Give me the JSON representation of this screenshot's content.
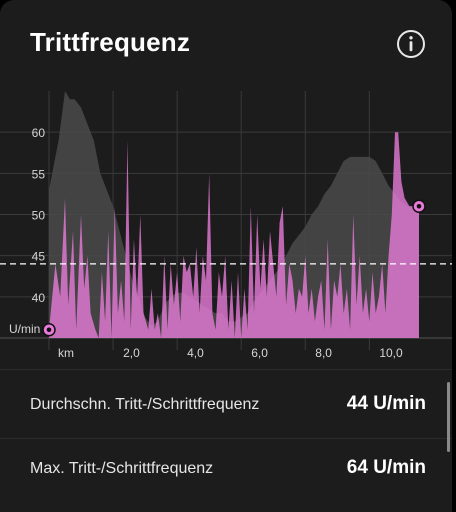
{
  "header": {
    "title": "Trittfrequenz",
    "info_icon": "info-icon"
  },
  "colors": {
    "card_bg": "#1c1c1c",
    "cadence_series": "#e77ad8",
    "elevation_series": "#4a4a4a",
    "average_line": "#ffffff",
    "grid": "#3a3a3a"
  },
  "chart_data": {
    "type": "area",
    "xlabel": "km",
    "ylabel": "U/min",
    "x_ticks": [
      "2,0",
      "4,0",
      "6,0",
      "8,0",
      "10,0"
    ],
    "y_ticks": [
      "40",
      "45",
      "50",
      "55",
      "60"
    ],
    "xlim": [
      0,
      11.8
    ],
    "ylim": [
      35,
      65
    ],
    "grid": true,
    "average": 44,
    "cadence": {
      "x": [
        0.0,
        0.2,
        0.35,
        0.5,
        0.6,
        0.75,
        0.85,
        1.0,
        1.1,
        1.2,
        1.3,
        1.45,
        1.55,
        1.65,
        1.75,
        1.85,
        1.95,
        2.05,
        2.15,
        2.25,
        2.35,
        2.45,
        2.55,
        2.65,
        2.75,
        2.85,
        2.95,
        3.1,
        3.2,
        3.3,
        3.4,
        3.5,
        3.6,
        3.7,
        3.8,
        3.9,
        4.0,
        4.1,
        4.2,
        4.3,
        4.4,
        4.5,
        4.6,
        4.7,
        4.8,
        4.9,
        5.0,
        5.1,
        5.2,
        5.3,
        5.4,
        5.5,
        5.6,
        5.7,
        5.8,
        5.9,
        6.0,
        6.1,
        6.2,
        6.3,
        6.4,
        6.5,
        6.6,
        6.7,
        6.8,
        6.9,
        7.0,
        7.1,
        7.2,
        7.3,
        7.4,
        7.5,
        7.6,
        7.7,
        7.8,
        7.9,
        8.0,
        8.1,
        8.2,
        8.3,
        8.4,
        8.5,
        8.6,
        8.7,
        8.8,
        8.9,
        9.0,
        9.1,
        9.2,
        9.3,
        9.4,
        9.5,
        9.6,
        9.7,
        9.8,
        9.9,
        10.0,
        10.1,
        10.2,
        10.3,
        10.4,
        10.5,
        10.6,
        10.7,
        10.8,
        10.9,
        11.0,
        11.1,
        11.25,
        11.4,
        11.55
      ],
      "values": [
        36,
        44,
        40,
        52,
        39,
        48,
        36,
        50,
        41,
        45,
        38,
        36,
        35,
        43,
        37,
        48,
        35,
        51,
        38,
        42,
        37,
        59,
        36,
        47,
        40,
        50,
        38,
        36,
        41,
        36,
        38,
        35,
        45,
        36,
        44,
        39,
        43,
        37,
        45,
        43,
        44,
        40,
        46,
        38,
        45,
        42,
        55,
        38,
        36,
        43,
        40,
        45,
        36,
        42,
        35,
        43,
        35,
        41,
        36,
        51,
        38,
        50,
        41,
        47,
        40,
        48,
        44,
        40,
        49,
        51,
        39,
        44,
        42,
        38,
        41,
        40,
        45,
        38,
        41,
        37,
        40,
        42,
        36,
        47,
        36,
        42,
        40,
        44,
        38,
        41,
        36,
        50,
        39,
        45,
        38,
        41,
        37,
        43,
        38,
        40,
        44,
        38,
        45,
        50,
        60,
        60,
        54,
        52,
        51,
        51,
        51
      ]
    },
    "elevation": {
      "x": [
        0.0,
        0.3,
        0.5,
        0.65,
        0.8,
        1.0,
        1.2,
        1.4,
        1.6,
        1.8,
        2.0,
        2.2,
        2.4,
        2.6,
        2.8,
        3.0,
        3.2,
        3.4,
        3.6,
        3.8,
        4.0,
        4.2,
        4.4,
        4.6,
        4.8,
        5.0,
        5.2,
        5.4,
        5.6,
        5.8,
        6.0,
        6.2,
        6.4,
        6.6,
        6.8,
        7.0,
        7.2,
        7.4,
        7.6,
        7.8,
        8.0,
        8.2,
        8.4,
        8.6,
        8.8,
        9.0,
        9.2,
        9.4,
        9.6,
        9.8,
        10.0,
        10.2,
        10.4,
        10.6,
        10.8,
        11.0,
        11.2,
        11.4,
        11.55
      ],
      "values": [
        53,
        59,
        65,
        64,
        64,
        63,
        61,
        59,
        55,
        53,
        51,
        48,
        45,
        42,
        40,
        37.5,
        36.5,
        37,
        39,
        40,
        40.5,
        40.5,
        40,
        39.5,
        39,
        38.5,
        38,
        38,
        37,
        37,
        37.5,
        38,
        39.5,
        40.5,
        41.5,
        42.5,
        43.5,
        45,
        46.5,
        47.5,
        48.5,
        50,
        51,
        52.5,
        53.5,
        55,
        56.5,
        57,
        57,
        57,
        57,
        56.5,
        55,
        53.5,
        52.5,
        51.5,
        51,
        51,
        51
      ]
    }
  },
  "stats": [
    {
      "label": "Durchschn. Tritt-/Schrittfrequenz",
      "value": "44 U/min"
    },
    {
      "label": "Max. Tritt-/Schrittfrequenz",
      "value": "64 U/min"
    }
  ]
}
